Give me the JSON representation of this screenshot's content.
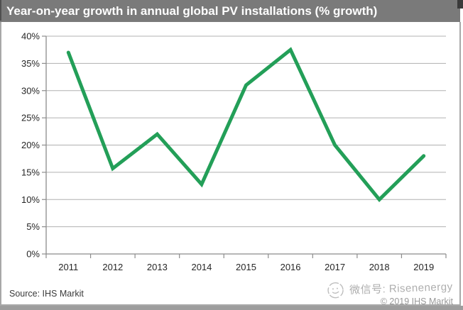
{
  "title_bar": {
    "title": "Year-on-year growth in annual global PV installations (% growth)"
  },
  "chart_data": {
    "type": "line",
    "title": "Year-on-year growth in annual global PV installations (% growth)",
    "categories": [
      "2011",
      "2012",
      "2013",
      "2014",
      "2015",
      "2016",
      "2017",
      "2018",
      "2019"
    ],
    "series": [
      {
        "name": "Year-on-year growth (% growth)",
        "values": [
          37,
          15.7,
          22,
          12.8,
          31,
          37.5,
          20,
          10,
          18
        ],
        "color": "#239f58"
      }
    ],
    "xlabel": "",
    "ylabel": "",
    "ylim": [
      0,
      40
    ],
    "yticks": [
      0,
      5,
      10,
      15,
      20,
      25,
      30,
      35,
      40
    ],
    "ytick_labels": [
      "0%",
      "5%",
      "10%",
      "15%",
      "20%",
      "25%",
      "30%",
      "35%",
      "40%"
    ],
    "grid": true,
    "legend_position": "none"
  },
  "footer": {
    "source": "Source: IHS Markit"
  },
  "watermark": {
    "wechat_label": "微信号: Risenenergy",
    "copyright": "© 2019 IHS Markit"
  },
  "colors": {
    "title_bar_bg": "#7a7a7a",
    "title_text": "#ffffff",
    "grid": "#b0b0b0",
    "axis": "#8c8c8c",
    "tick_text": "#262626",
    "line": "#239f58"
  }
}
